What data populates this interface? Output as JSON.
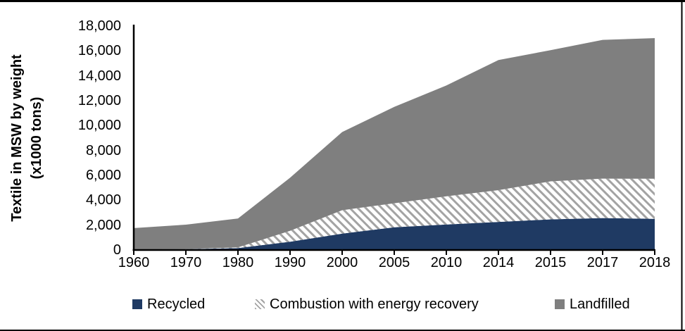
{
  "page": {
    "background": "#ffffff",
    "frame_color": "#000000"
  },
  "chart_data": {
    "type": "area",
    "stacked": true,
    "title": "",
    "xlabel": "",
    "ylabel": "Textile in MSW by weight (x1000 tons)",
    "ylabel_line1": "Textile in MSW by weight",
    "ylabel_line2": "(x1000 tons)",
    "categories": [
      "1960",
      "1970",
      "1980",
      "1990",
      "2000",
      "2005",
      "2010",
      "2014",
      "2015",
      "2017",
      "2018"
    ],
    "series": [
      {
        "name": "Recycled",
        "color": "#1f3a63",
        "fill": "solid",
        "values": [
          50,
          60,
          160,
          660,
          1320,
          1830,
          2050,
          2260,
          2460,
          2570,
          2510
        ]
      },
      {
        "name": "Combustion with energy recovery",
        "color": "#a3a3a3",
        "fill": "diagonal-hatch",
        "values": [
          0,
          10,
          50,
          880,
          1880,
          1930,
          2270,
          2550,
          3060,
          3170,
          3220
        ]
      },
      {
        "name": "Landfilled",
        "color": "#7f7f7f",
        "fill": "solid",
        "values": [
          1710,
          1970,
          2320,
          4270,
          6280,
          7750,
          8900,
          10460,
          10540,
          11150,
          11300
        ]
      }
    ],
    "ylim": [
      0,
      18000
    ],
    "ytick_step": 2000,
    "y_tick_labels": [
      "0",
      "2,000",
      "4,000",
      "6,000",
      "8,000",
      "10,000",
      "12,000",
      "14,000",
      "16,000",
      "18,000"
    ],
    "grid": false,
    "legend_position": "bottom",
    "axis_color": "#000000"
  }
}
